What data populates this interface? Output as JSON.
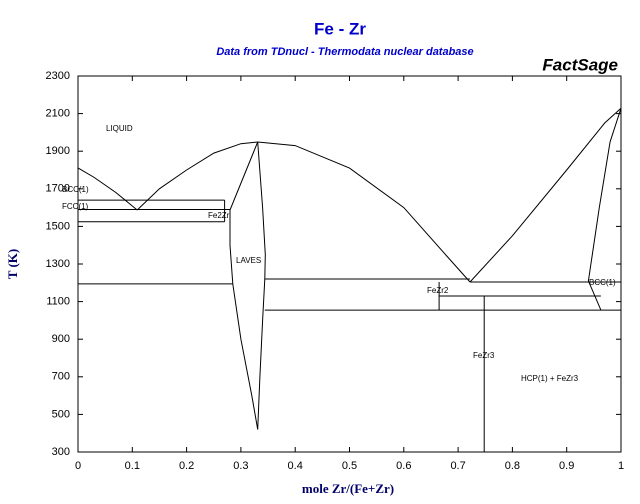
{
  "chart_data": {
    "type": "line",
    "title": "Fe - Zr",
    "subtitle": "Data from TDnucl - Thermodata nuclear database",
    "logo": "FactSage",
    "x_label": "mole Zr/(Fe+Zr)",
    "y_label": "T (K)",
    "xlim": [
      0,
      1
    ],
    "ylim": [
      300,
      2300
    ],
    "xticks": [
      0,
      0.1,
      0.2,
      0.3,
      0.4,
      0.5,
      0.6,
      0.7,
      0.8,
      0.9,
      1
    ],
    "yticks": [
      300,
      500,
      700,
      900,
      1100,
      1300,
      1500,
      1700,
      1900,
      2100,
      2300
    ],
    "annotations": [
      "LIQUID",
      "BCC(1)",
      "FCC(1)",
      "Fe2Zr",
      "LAVES",
      "FeZr2",
      "FeZr3",
      "HCP(1) + FeZr3",
      "BCC(1)"
    ],
    "series": [
      {
        "color": "#000000",
        "x": [
          0,
          0.03,
          0.07,
          0.109
        ],
        "values": [
          1811,
          1760,
          1680,
          1587
        ]
      },
      {
        "color": "#000000",
        "x": [
          0.109,
          0.15,
          0.2,
          0.25,
          0.3,
          0.331
        ],
        "values": [
          1587,
          1700,
          1800,
          1890,
          1940,
          1949
        ]
      },
      {
        "color": "#000000",
        "x": [
          0.331,
          0.4,
          0.5,
          0.6,
          0.68,
          0.722
        ],
        "values": [
          1949,
          1930,
          1810,
          1600,
          1340,
          1204
        ]
      },
      {
        "color": "#000000",
        "x": [
          0.722,
          0.8,
          0.9,
          0.97,
          1
        ],
        "values": [
          1204,
          1450,
          1800,
          2050,
          2128
        ]
      },
      {
        "color": "#000000",
        "x": [
          0.331,
          0.31,
          0.28,
          0.28,
          0.285,
          0.3,
          0.32,
          0.331
        ],
        "values": [
          1949,
          1800,
          1587,
          1400,
          1194,
          900,
          600,
          420
        ]
      },
      {
        "color": "#000000",
        "x": [
          0.331,
          0.34,
          0.345,
          0.344,
          0.34,
          0.335,
          0.331
        ],
        "values": [
          1949,
          1600,
          1350,
          1220,
          1000,
          700,
          420
        ]
      },
      {
        "color": "#000000",
        "x": [
          0,
          0.27
        ],
        "values": [
          1640,
          1640
        ]
      },
      {
        "color": "#000000",
        "x": [
          0,
          0.28
        ],
        "values": [
          1590,
          1590
        ]
      },
      {
        "color": "#000000",
        "x": [
          0,
          0.27
        ],
        "values": [
          1525,
          1525
        ]
      },
      {
        "color": "#000000",
        "x": [
          0.27,
          0.27
        ],
        "values": [
          1525,
          1640
        ]
      },
      {
        "color": "#000000",
        "x": [
          0,
          0.285
        ],
        "values": [
          1194,
          1194
        ]
      },
      {
        "color": "#000000",
        "x": [
          0.344,
          0.722
        ],
        "values": [
          1220,
          1220
        ]
      },
      {
        "color": "#000000",
        "x": [
          0.722,
          1
        ],
        "values": [
          1204,
          1204
        ]
      },
      {
        "color": "#000000",
        "x": [
          0.665,
          0.665
        ],
        "values": [
          1204,
          1055
        ]
      },
      {
        "color": "#000000",
        "x": [
          0.665,
          0.963
        ],
        "values": [
          1130,
          1130
        ]
      },
      {
        "color": "#000000",
        "x": [
          0.344,
          1
        ],
        "values": [
          1055,
          1055
        ]
      },
      {
        "color": "#000000",
        "x": [
          0.748,
          0.748
        ],
        "values": [
          1130,
          300
        ]
      },
      {
        "color": "#000000",
        "x": [
          0.963,
          0.94,
          0.96,
          0.98,
          1
        ],
        "values": [
          1055,
          1210,
          1600,
          1950,
          2128
        ]
      }
    ]
  }
}
